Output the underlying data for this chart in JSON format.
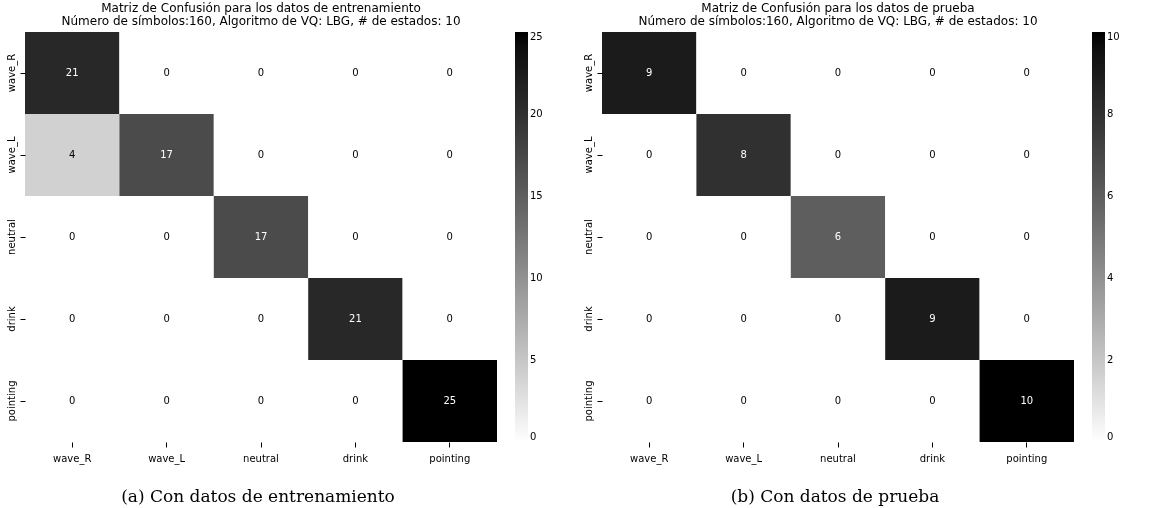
{
  "chart_data": [
    {
      "type": "heatmap",
      "title": "Matriz de Confusión para los datos de entrenamiento",
      "subtitle": "Número de símbolos:160, Algoritmo de VQ: LBG, # de estados: 10",
      "categories": [
        "wave_R",
        "wave_L",
        "neutral",
        "drink",
        "pointing"
      ],
      "y_categories": [
        "wave_R",
        "wave_L",
        "neutral",
        "drink",
        "pointing"
      ],
      "cells": [
        [
          21,
          0,
          0,
          0,
          0
        ],
        [
          4,
          17,
          0,
          0,
          0
        ],
        [
          0,
          0,
          17,
          0,
          0
        ],
        [
          0,
          0,
          0,
          21,
          0
        ],
        [
          0,
          0,
          0,
          0,
          25
        ]
      ],
      "data_labels": true,
      "clim": [
        0,
        25
      ],
      "cticks": [
        0,
        5,
        10,
        15,
        20,
        25
      ],
      "annotations": [
        "(a) Con datos de entrenamiento"
      ]
    },
    {
      "type": "heatmap",
      "title": "Matriz de Confusión para los datos de prueba",
      "subtitle": "Número de símbolos:160, Algoritmo de VQ: LBG, # de estados: 10",
      "categories": [
        "wave_R",
        "wave_L",
        "neutral",
        "drink",
        "pointing"
      ],
      "y_categories": [
        "wave_R",
        "wave_L",
        "neutral",
        "drink",
        "pointing"
      ],
      "cells": [
        [
          9,
          0,
          0,
          0,
          0
        ],
        [
          0,
          8,
          0,
          0,
          0
        ],
        [
          0,
          0,
          6,
          0,
          0
        ],
        [
          0,
          0,
          0,
          9,
          0
        ],
        [
          0,
          0,
          0,
          0,
          10
        ]
      ],
      "data_labels": true,
      "clim": [
        0,
        10
      ],
      "cticks": [
        0,
        2,
        4,
        6,
        8,
        10
      ],
      "annotations": [
        "(b) Con datos de prueba"
      ]
    }
  ]
}
